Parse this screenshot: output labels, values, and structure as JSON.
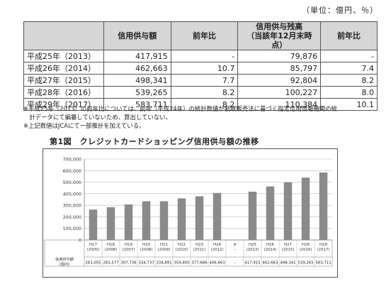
{
  "unit_note": "（単位：億円、％）",
  "table": {
    "headers": [
      "",
      "信用供与額",
      "前年比",
      "信用供与残高\n（当該年12月末時点）",
      "前年比"
    ],
    "rows": [
      {
        "year": "平成25年（2013）",
        "amount": "417,915",
        "yoy1": "-",
        "balance": "79,876",
        "yoy2": "-"
      },
      {
        "year": "平成26年（2014）",
        "amount": "462,663",
        "yoy1": "10.7",
        "balance": "85,797",
        "yoy2": "7.4"
      },
      {
        "year": "平成27年（2015）",
        "amount": "498,341",
        "yoy1": "7.7",
        "balance": "92,804",
        "yoy2": "8.2"
      },
      {
        "year": "平成28年（2016）",
        "amount": "539,265",
        "yoy1": "8.2",
        "balance": "100,227",
        "yoy2": "8.0"
      },
      {
        "year": "平成29年（2017）",
        "amount": "583,711",
        "yoy1": "8.2",
        "balance": "110,384",
        "yoy2": "10.1"
      }
    ]
  },
  "notes": [
    "※平成25年（2013）の前年比については、前年（平成24年）の統計数値が割賦販売法に基づく指定信用情報機関の統",
    "　計データにて編纂していないため、算出していない。",
    "※上記数値はJCAにて一部推計を加えている。"
  ],
  "chart_data": {
    "type": "bar",
    "title": "第1図　クレジットカードショッピング信用供与額の推移",
    "categories": [
      "H17\n(2005)",
      "H18\n(2006)",
      "H19\n(2007)",
      "H20\n(2008)",
      "H21\n(2009)",
      "H22\n(2010)",
      "H23\n(2011)",
      "H24\n(2012)",
      "※\n-",
      "H25\n(2013)",
      "H26\n(2014)",
      "H27\n(2015)",
      "H28\n(2016)",
      "H29\n(2017)"
    ],
    "values": [
      263055,
      283577,
      307736,
      334737,
      334891,
      359800,
      377686,
      406663,
      null,
      417915,
      462663,
      498341,
      539265,
      583711
    ],
    "value_labels": [
      "263,055",
      "283,577",
      "307,736",
      "334,737",
      "334,891",
      "359,800",
      "377,686",
      "406,663",
      "-",
      "417,915",
      "462,663",
      "498,341",
      "539,265",
      "583,711"
    ],
    "row_label": "信用供与額\n(億円)",
    "ylim": [
      0,
      700000
    ],
    "yticks": [
      "0",
      "100,000",
      "200,000",
      "300,000",
      "400,000",
      "500,000",
      "600,000",
      "700,000"
    ],
    "grid": true,
    "bar_color": "#8a8a8a"
  }
}
